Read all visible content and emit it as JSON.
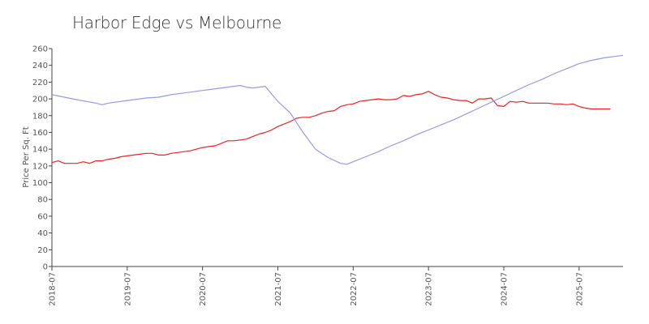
{
  "chart_data": {
    "type": "line",
    "title": "Harbor Edge vs Melbourne",
    "xlabel": "",
    "ylabel": "Price Per Sq. Ft",
    "x_range": [
      "2018-07",
      "2026-02"
    ],
    "ylim": [
      0,
      260
    ],
    "y_ticks": [
      0,
      20,
      40,
      60,
      80,
      100,
      120,
      140,
      160,
      180,
      200,
      220,
      240,
      260
    ],
    "x_ticks": [
      "2018-07",
      "2019-07",
      "2020-07",
      "2021-07",
      "2022-07",
      "2023-07",
      "2024-07",
      "2025-07"
    ],
    "grid": false,
    "legend": "none",
    "series": [
      {
        "color": "#ee2222",
        "points": [
          [
            "2018-07",
            124
          ],
          [
            "2018-08",
            126
          ],
          [
            "2018-09",
            123
          ],
          [
            "2018-10",
            123
          ],
          [
            "2018-11",
            123
          ],
          [
            "2018-12",
            125
          ],
          [
            "2019-01",
            123
          ],
          [
            "2019-02",
            126
          ],
          [
            "2019-03",
            126
          ],
          [
            "2019-04",
            128
          ],
          [
            "2019-05",
            129
          ],
          [
            "2019-06",
            131
          ],
          [
            "2019-07",
            132
          ],
          [
            "2019-08",
            133
          ],
          [
            "2019-09",
            134
          ],
          [
            "2019-10",
            135
          ],
          [
            "2019-11",
            135
          ],
          [
            "2019-12",
            133
          ],
          [
            "2020-01",
            133
          ],
          [
            "2020-02",
            135
          ],
          [
            "2020-03",
            136
          ],
          [
            "2020-04",
            137
          ],
          [
            "2020-05",
            138
          ],
          [
            "2020-06",
            140
          ],
          [
            "2020-07",
            142
          ],
          [
            "2020-08",
            143
          ],
          [
            "2020-09",
            144
          ],
          [
            "2020-10",
            147
          ],
          [
            "2020-11",
            150
          ],
          [
            "2020-12",
            150
          ],
          [
            "2021-01",
            151
          ],
          [
            "2021-02",
            152
          ],
          [
            "2021-03",
            155
          ],
          [
            "2021-04",
            158
          ],
          [
            "2021-05",
            160
          ],
          [
            "2021-06",
            163
          ],
          [
            "2021-07",
            167
          ],
          [
            "2021-08",
            170
          ],
          [
            "2021-09",
            173
          ],
          [
            "2021-10",
            177
          ],
          [
            "2021-11",
            178
          ],
          [
            "2021-12",
            178
          ],
          [
            "2022-01",
            180
          ],
          [
            "2022-02",
            183
          ],
          [
            "2022-03",
            185
          ],
          [
            "2022-04",
            186
          ],
          [
            "2022-05",
            191
          ],
          [
            "2022-06",
            193
          ],
          [
            "2022-07",
            194
          ],
          [
            "2022-08",
            197
          ],
          [
            "2022-09",
            198
          ],
          [
            "2022-10",
            199
          ],
          [
            "2022-11",
            200
          ],
          [
            "2022-12",
            199
          ],
          [
            "2023-01",
            199
          ],
          [
            "2023-02",
            200
          ],
          [
            "2023-03",
            204
          ],
          [
            "2023-04",
            203
          ],
          [
            "2023-05",
            205
          ],
          [
            "2023-06",
            206
          ],
          [
            "2023-07",
            209
          ],
          [
            "2023-08",
            205
          ],
          [
            "2023-09",
            202
          ],
          [
            "2023-10",
            201
          ],
          [
            "2023-11",
            199
          ],
          [
            "2023-12",
            198
          ],
          [
            "2024-01",
            198
          ],
          [
            "2024-02",
            195
          ],
          [
            "2024-03",
            200
          ],
          [
            "2024-04",
            200
          ],
          [
            "2024-05",
            201
          ],
          [
            "2024-06",
            192
          ],
          [
            "2024-07",
            191
          ],
          [
            "2024-08",
            197
          ],
          [
            "2024-09",
            196
          ],
          [
            "2024-10",
            197
          ],
          [
            "2024-11",
            195
          ],
          [
            "2024-12",
            195
          ],
          [
            "2025-01",
            195
          ],
          [
            "2025-02",
            195
          ],
          [
            "2025-03",
            194
          ],
          [
            "2025-04",
            194
          ],
          [
            "2025-05",
            193
          ],
          [
            "2025-06",
            194
          ],
          [
            "2025-07",
            191
          ],
          [
            "2025-08",
            189
          ],
          [
            "2025-09",
            188
          ],
          [
            "2025-10",
            188
          ],
          [
            "2025-11",
            188
          ],
          [
            "2025-12",
            188
          ]
        ]
      },
      {
        "color": "#9999ee",
        "points": [
          [
            "2018-07",
            205
          ],
          [
            "2018-11",
            199
          ],
          [
            "2019-02",
            195
          ],
          [
            "2019-03",
            193
          ],
          [
            "2019-04",
            195
          ],
          [
            "2019-07",
            198
          ],
          [
            "2019-10",
            201
          ],
          [
            "2019-12",
            202
          ],
          [
            "2020-02",
            205
          ],
          [
            "2020-04",
            207
          ],
          [
            "2020-07",
            210
          ],
          [
            "2020-10",
            213
          ],
          [
            "2021-01",
            216
          ],
          [
            "2021-02",
            214
          ],
          [
            "2021-03",
            213
          ],
          [
            "2021-05",
            215
          ],
          [
            "2021-07",
            197
          ],
          [
            "2021-09",
            183
          ],
          [
            "2021-11",
            160
          ],
          [
            "2022-01",
            140
          ],
          [
            "2022-03",
            130
          ],
          [
            "2022-05",
            123
          ],
          [
            "2022-06",
            122
          ],
          [
            "2022-07",
            125
          ],
          [
            "2022-09",
            131
          ],
          [
            "2022-11",
            137
          ],
          [
            "2023-01",
            144
          ],
          [
            "2023-03",
            150
          ],
          [
            "2023-05",
            157
          ],
          [
            "2023-07",
            163
          ],
          [
            "2023-09",
            169
          ],
          [
            "2023-11",
            175
          ],
          [
            "2024-01",
            182
          ],
          [
            "2024-03",
            189
          ],
          [
            "2024-05",
            196
          ],
          [
            "2024-07",
            203
          ],
          [
            "2024-09",
            210
          ],
          [
            "2024-11",
            217
          ],
          [
            "2025-01",
            223
          ],
          [
            "2025-03",
            230
          ],
          [
            "2025-05",
            236
          ],
          [
            "2025-07",
            242
          ],
          [
            "2025-09",
            246
          ],
          [
            "2025-11",
            249
          ],
          [
            "2026-01",
            251
          ],
          [
            "2026-02",
            252
          ]
        ]
      }
    ]
  }
}
